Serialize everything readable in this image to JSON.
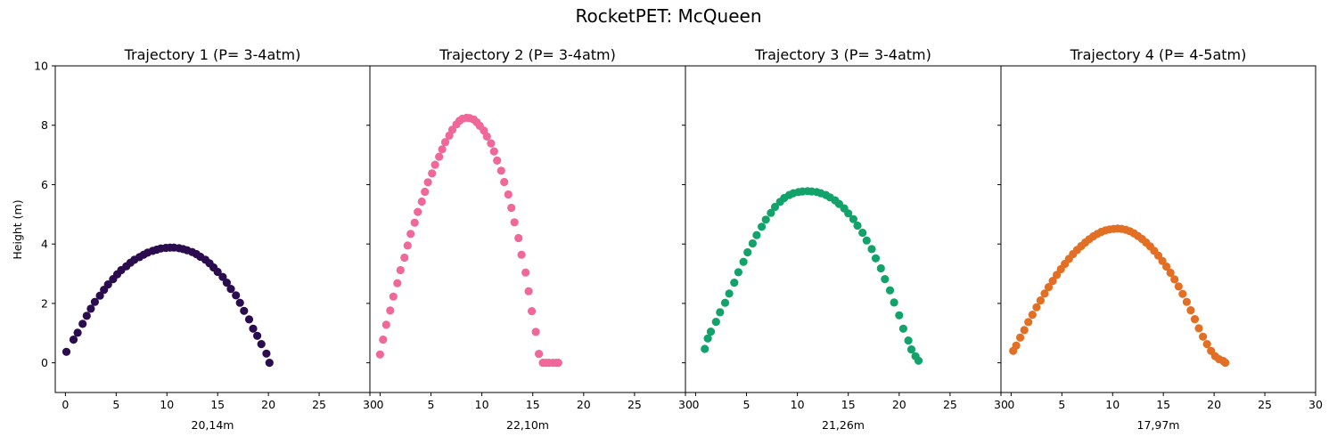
{
  "suptitle": "RocketPET: McQueen",
  "shared_ylabel": "Height (m)",
  "chart_data": [
    {
      "type": "scatter",
      "title": "Trajectory 1 (P= 3-4atm)",
      "xlabel": "20,14m",
      "ylabel": "Height (m)",
      "xlim": [
        -1,
        30
      ],
      "ylim": [
        -1,
        10
      ],
      "xticks": [
        0,
        5,
        10,
        15,
        20,
        25,
        30
      ],
      "yticks": [
        0,
        2,
        4,
        6,
        8,
        10
      ],
      "color": "#2b0d4f",
      "series": [
        {
          "x": [
            0.1,
            0.8,
            1.2,
            1.7,
            2.1,
            2.5,
            2.9,
            3.4,
            3.8,
            4.2,
            4.7,
            5.1,
            5.5,
            6.0,
            6.4,
            6.8,
            7.3,
            7.7,
            8.1,
            8.6,
            9.0,
            9.4,
            9.9,
            10.3,
            10.7,
            11.2,
            11.6,
            12.0,
            12.5,
            12.9,
            13.3,
            13.8,
            14.2,
            14.6,
            15.0,
            15.5,
            15.9,
            16.3,
            16.8,
            17.2,
            17.6,
            18.1,
            18.5,
            18.9,
            19.3,
            19.8,
            20.1
          ],
          "y": [
            0.37,
            0.78,
            1.01,
            1.31,
            1.58,
            1.82,
            2.05,
            2.26,
            2.46,
            2.64,
            2.82,
            2.98,
            3.12,
            3.25,
            3.37,
            3.47,
            3.56,
            3.64,
            3.71,
            3.77,
            3.81,
            3.85,
            3.87,
            3.88,
            3.88,
            3.86,
            3.83,
            3.79,
            3.73,
            3.66,
            3.57,
            3.47,
            3.35,
            3.21,
            3.06,
            2.89,
            2.7,
            2.49,
            2.27,
            2.02,
            1.75,
            1.46,
            1.15,
            0.91,
            0.63,
            0.31,
            0.0
          ]
        }
      ]
    },
    {
      "type": "scatter",
      "title": "Trajectory 2 (P= 3-4atm)",
      "xlabel": "22,10m",
      "ylabel": "",
      "xlim": [
        -1,
        30
      ],
      "ylim": [
        -1,
        10
      ],
      "xticks": [
        0,
        5,
        10,
        15,
        20,
        25,
        30
      ],
      "yticks": [
        0,
        2,
        4,
        6,
        8,
        10
      ],
      "color": "#f0679a",
      "series": [
        {
          "x": [
            0.0,
            0.3,
            0.6,
            1.0,
            1.3,
            1.7,
            2.0,
            2.4,
            2.7,
            3.0,
            3.4,
            3.7,
            4.1,
            4.4,
            4.7,
            5.1,
            5.4,
            5.8,
            6.1,
            6.4,
            6.8,
            7.1,
            7.5,
            7.8,
            8.1,
            8.5,
            8.8,
            9.2,
            9.5,
            9.8,
            10.2,
            10.5,
            10.9,
            11.2,
            11.5,
            11.9,
            12.2,
            12.6,
            12.9,
            13.2,
            13.6,
            13.9,
            14.3,
            14.6,
            14.9,
            15.3,
            15.6,
            16.0,
            16.3,
            16.6,
            17.0,
            17.3,
            17.5
          ],
          "y": [
            0.28,
            0.78,
            1.28,
            1.76,
            2.23,
            2.68,
            3.12,
            3.54,
            3.95,
            4.34,
            4.72,
            5.08,
            5.43,
            5.76,
            6.08,
            6.38,
            6.67,
            6.94,
            7.19,
            7.43,
            7.65,
            7.85,
            8.03,
            8.15,
            8.22,
            8.25,
            8.24,
            8.19,
            8.1,
            7.98,
            7.82,
            7.62,
            7.39,
            7.12,
            6.81,
            6.47,
            6.09,
            5.67,
            5.22,
            4.73,
            4.2,
            3.64,
            3.04,
            2.41,
            1.74,
            1.04,
            0.3,
            0.0,
            0.0,
            0.0,
            0.0,
            0.0,
            0.0
          ]
        }
      ]
    },
    {
      "type": "scatter",
      "title": "Trajectory 3 (P= 3-4atm)",
      "xlabel": "21,26m",
      "ylabel": "",
      "xlim": [
        -1,
        30
      ],
      "ylim": [
        -1,
        10
      ],
      "xticks": [
        0,
        5,
        10,
        15,
        20,
        25,
        30
      ],
      "yticks": [
        0,
        2,
        4,
        6,
        8,
        10
      ],
      "color": "#12a36b",
      "series": [
        {
          "x": [
            0.9,
            1.2,
            1.5,
            2.0,
            2.4,
            2.9,
            3.3,
            3.8,
            4.2,
            4.7,
            5.1,
            5.6,
            6.0,
            6.5,
            6.9,
            7.4,
            7.8,
            8.3,
            8.7,
            9.2,
            9.6,
            10.1,
            10.5,
            11.0,
            11.4,
            11.9,
            12.3,
            12.8,
            13.2,
            13.7,
            14.1,
            14.6,
            15.0,
            15.5,
            15.9,
            16.4,
            16.8,
            17.3,
            17.7,
            18.2,
            18.6,
            19.1,
            19.5,
            20.0,
            20.4,
            20.9,
            21.2,
            21.6,
            21.9
          ],
          "y": [
            0.47,
            0.82,
            1.05,
            1.38,
            1.7,
            2.02,
            2.33,
            2.7,
            3.05,
            3.4,
            3.72,
            4.02,
            4.3,
            4.58,
            4.82,
            5.05,
            5.25,
            5.42,
            5.55,
            5.65,
            5.71,
            5.75,
            5.77,
            5.78,
            5.77,
            5.75,
            5.71,
            5.65,
            5.57,
            5.47,
            5.35,
            5.2,
            5.03,
            4.84,
            4.62,
            4.38,
            4.12,
            3.83,
            3.52,
            3.18,
            2.82,
            2.44,
            2.03,
            1.6,
            1.15,
            0.75,
            0.45,
            0.22,
            0.07
          ]
        }
      ]
    },
    {
      "type": "scatter",
      "title": "Trajectory 4 (P= 4-5atm)",
      "xlabel": "17,97m",
      "ylabel": "",
      "xlim": [
        -1,
        30
      ],
      "ylim": [
        -1,
        10
      ],
      "xticks": [
        0,
        5,
        10,
        15,
        20,
        25,
        30
      ],
      "yticks": [
        0,
        2,
        4,
        6,
        8,
        10
      ],
      "color": "#e36f25",
      "series": [
        {
          "x": [
            0.2,
            0.5,
            0.9,
            1.3,
            1.7,
            2.1,
            2.5,
            2.9,
            3.3,
            3.7,
            4.1,
            4.5,
            4.9,
            5.3,
            5.7,
            6.1,
            6.5,
            6.9,
            7.3,
            7.7,
            8.1,
            8.5,
            8.9,
            9.3,
            9.7,
            10.1,
            10.5,
            10.9,
            11.3,
            11.7,
            12.1,
            12.5,
            12.9,
            13.3,
            13.7,
            14.1,
            14.5,
            14.9,
            15.3,
            15.7,
            16.1,
            16.5,
            16.9,
            17.3,
            17.7,
            18.1,
            18.5,
            18.9,
            19.3,
            19.7,
            20.1,
            20.5,
            20.9,
            21.1
          ],
          "y": [
            0.4,
            0.58,
            0.85,
            1.1,
            1.37,
            1.62,
            1.87,
            2.1,
            2.33,
            2.55,
            2.76,
            2.96,
            3.15,
            3.33,
            3.5,
            3.66,
            3.8,
            3.93,
            4.05,
            4.16,
            4.26,
            4.34,
            4.41,
            4.46,
            4.49,
            4.51,
            4.52,
            4.51,
            4.48,
            4.43,
            4.36,
            4.27,
            4.17,
            4.05,
            3.92,
            3.77,
            3.61,
            3.43,
            3.24,
            3.03,
            2.81,
            2.57,
            2.32,
            2.05,
            1.77,
            1.47,
            1.16,
            0.88,
            0.63,
            0.4,
            0.22,
            0.12,
            0.06,
            0.0
          ]
        }
      ]
    }
  ]
}
